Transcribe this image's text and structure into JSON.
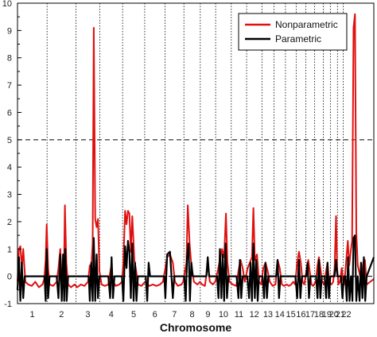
{
  "chart_data": {
    "type": "line",
    "title": "",
    "xlabel": "Chromosome",
    "ylabel": "",
    "ylim": [
      -1,
      10
    ],
    "yticks": [
      0,
      1,
      2,
      3,
      4,
      5,
      6,
      7,
      8,
      9,
      10
    ],
    "threshold": 5,
    "baseline": 0,
    "chromosomes": [
      "1",
      "2",
      "3",
      "4",
      "5",
      "6",
      "7",
      "8",
      "9",
      "10",
      "11",
      "12",
      "13",
      "14",
      "15",
      "16",
      "17",
      "18",
      "19",
      "20",
      "21",
      "22"
    ],
    "chromosome_fraction_starts": [
      0.0,
      0.083,
      0.164,
      0.231,
      0.295,
      0.357,
      0.414,
      0.467,
      0.513,
      0.556,
      0.6,
      0.643,
      0.686,
      0.72,
      0.752,
      0.782,
      0.809,
      0.834,
      0.858,
      0.878,
      0.898,
      0.914,
      0.932
    ],
    "series": [
      {
        "name": "Nonparametric",
        "color": "#e01010",
        "points": [
          [
            0.0,
            -0.2
          ],
          [
            0.004,
            1.0
          ],
          [
            0.008,
            1.1
          ],
          [
            0.012,
            0.3
          ],
          [
            0.016,
            1.0
          ],
          [
            0.022,
            -0.2
          ],
          [
            0.03,
            -0.3
          ],
          [
            0.04,
            -0.35
          ],
          [
            0.05,
            -0.2
          ],
          [
            0.06,
            -0.4
          ],
          [
            0.07,
            -0.3
          ],
          [
            0.075,
            -0.1
          ],
          [
            0.079,
            0.6
          ],
          [
            0.082,
            1.9
          ],
          [
            0.086,
            0.3
          ],
          [
            0.09,
            -0.3
          ],
          [
            0.1,
            -0.35
          ],
          [
            0.11,
            -0.2
          ],
          [
            0.115,
            0.3
          ],
          [
            0.12,
            1.0
          ],
          [
            0.124,
            -0.2
          ],
          [
            0.13,
            -0.3
          ],
          [
            0.133,
            2.6
          ],
          [
            0.137,
            0.5
          ],
          [
            0.142,
            -0.3
          ],
          [
            0.15,
            -0.4
          ],
          [
            0.16,
            -0.3
          ],
          [
            0.168,
            -0.4
          ],
          [
            0.178,
            -0.3
          ],
          [
            0.188,
            -0.35
          ],
          [
            0.198,
            -0.2
          ],
          [
            0.203,
            0.4
          ],
          [
            0.207,
            0.3
          ],
          [
            0.211,
            1.2
          ],
          [
            0.214,
            9.1
          ],
          [
            0.218,
            2.1
          ],
          [
            0.222,
            1.8
          ],
          [
            0.226,
            2.1
          ],
          [
            0.23,
            0.2
          ],
          [
            0.236,
            -0.3
          ],
          [
            0.245,
            -0.35
          ],
          [
            0.255,
            -0.3
          ],
          [
            0.262,
            0.3
          ],
          [
            0.268,
            -0.2
          ],
          [
            0.276,
            -0.35
          ],
          [
            0.286,
            -0.3
          ],
          [
            0.293,
            -0.2
          ],
          [
            0.297,
            0.5
          ],
          [
            0.302,
            2.4
          ],
          [
            0.306,
            1.9
          ],
          [
            0.31,
            2.4
          ],
          [
            0.314,
            2.3
          ],
          [
            0.318,
            0.9
          ],
          [
            0.322,
            2.2
          ],
          [
            0.328,
            0.6
          ],
          [
            0.333,
            0.2
          ],
          [
            0.338,
            -0.3
          ],
          [
            0.348,
            -0.35
          ],
          [
            0.358,
            -0.2
          ],
          [
            0.364,
            -0.3
          ],
          [
            0.37,
            -0.35
          ],
          [
            0.38,
            -0.3
          ],
          [
            0.39,
            -0.35
          ],
          [
            0.4,
            -0.3
          ],
          [
            0.408,
            -0.2
          ],
          [
            0.415,
            0.3
          ],
          [
            0.42,
            0.7
          ],
          [
            0.428,
            0.8
          ],
          [
            0.436,
            0.5
          ],
          [
            0.442,
            -0.2
          ],
          [
            0.45,
            -0.35
          ],
          [
            0.46,
            -0.3
          ],
          [
            0.465,
            -0.2
          ],
          [
            0.47,
            0.2
          ],
          [
            0.474,
            0.5
          ],
          [
            0.478,
            2.6
          ],
          [
            0.483,
            1.2
          ],
          [
            0.488,
            0.4
          ],
          [
            0.495,
            -0.2
          ],
          [
            0.505,
            -0.3
          ],
          [
            0.512,
            -0.2
          ],
          [
            0.518,
            -0.3
          ],
          [
            0.526,
            -0.35
          ],
          [
            0.534,
            0.4
          ],
          [
            0.54,
            -0.2
          ],
          [
            0.548,
            -0.3
          ],
          [
            0.555,
            -0.2
          ],
          [
            0.562,
            0.2
          ],
          [
            0.568,
            0.6
          ],
          [
            0.574,
            1.0
          ],
          [
            0.58,
            0.7
          ],
          [
            0.585,
            2.3
          ],
          [
            0.589,
            0.5
          ],
          [
            0.595,
            -0.2
          ],
          [
            0.604,
            -0.3
          ],
          [
            0.614,
            -0.35
          ],
          [
            0.62,
            0.2
          ],
          [
            0.626,
            0.6
          ],
          [
            0.632,
            0.3
          ],
          [
            0.638,
            -0.2
          ],
          [
            0.646,
            0.3
          ],
          [
            0.652,
            0.5
          ],
          [
            0.658,
            0.7
          ],
          [
            0.662,
            2.5
          ],
          [
            0.666,
            0.6
          ],
          [
            0.672,
            0.8
          ],
          [
            0.678,
            -0.2
          ],
          [
            0.684,
            -0.3
          ],
          [
            0.69,
            0.3
          ],
          [
            0.696,
            0.5
          ],
          [
            0.702,
            0.2
          ],
          [
            0.708,
            -0.2
          ],
          [
            0.716,
            -0.35
          ],
          [
            0.724,
            -0.3
          ],
          [
            0.73,
            0.6
          ],
          [
            0.736,
            0.3
          ],
          [
            0.742,
            -0.3
          ],
          [
            0.748,
            -0.35
          ],
          [
            0.755,
            -0.3
          ],
          [
            0.762,
            -0.35
          ],
          [
            0.768,
            -0.3
          ],
          [
            0.774,
            -0.2
          ],
          [
            0.779,
            -0.3
          ],
          [
            0.785,
            0.5
          ],
          [
            0.79,
            0.9
          ],
          [
            0.795,
            0.5
          ],
          [
            0.8,
            -0.2
          ],
          [
            0.805,
            -0.3
          ],
          [
            0.812,
            0.3
          ],
          [
            0.816,
            0.6
          ],
          [
            0.82,
            0.2
          ],
          [
            0.825,
            -0.3
          ],
          [
            0.83,
            -0.35
          ],
          [
            0.837,
            -0.2
          ],
          [
            0.842,
            0.4
          ],
          [
            0.846,
            0.7
          ],
          [
            0.85,
            0.3
          ],
          [
            0.855,
            -0.2
          ],
          [
            0.861,
            -0.3
          ],
          [
            0.866,
            0.2
          ],
          [
            0.87,
            0.5
          ],
          [
            0.874,
            -0.2
          ],
          [
            0.881,
            -0.3
          ],
          [
            0.886,
            -0.2
          ],
          [
            0.89,
            0.3
          ],
          [
            0.894,
            2.2
          ],
          [
            0.897,
            0.3
          ],
          [
            0.901,
            -0.3
          ],
          [
            0.905,
            -0.2
          ],
          [
            0.91,
            0.3
          ],
          [
            0.913,
            -0.1
          ],
          [
            0.917,
            -0.3
          ],
          [
            0.922,
            0.5
          ],
          [
            0.927,
            1.3
          ],
          [
            0.931,
            0.4
          ],
          [
            0.935,
            0.9
          ],
          [
            0.939,
            1.3
          ],
          [
            0.943,
            9.1
          ],
          [
            0.947,
            9.6
          ],
          [
            0.951,
            1.6
          ],
          [
            0.955,
            0.4
          ],
          [
            0.96,
            0.1
          ],
          [
            0.965,
            -0.2
          ],
          [
            0.97,
            0.5
          ],
          [
            0.975,
            0.6
          ],
          [
            0.98,
            -0.3
          ],
          [
            0.99,
            -0.2
          ],
          [
            1.0,
            -0.1
          ]
        ]
      },
      {
        "name": "Parametric",
        "color": "#000000",
        "points": [
          [
            0.0,
            -0.5
          ],
          [
            0.004,
            0.7
          ],
          [
            0.008,
            -0.9
          ],
          [
            0.012,
            0.5
          ],
          [
            0.016,
            -0.8
          ],
          [
            0.02,
            0.0
          ],
          [
            0.03,
            0.0
          ],
          [
            0.06,
            0.0
          ],
          [
            0.076,
            0.0
          ],
          [
            0.079,
            -0.9
          ],
          [
            0.082,
            1.0
          ],
          [
            0.086,
            -0.8
          ],
          [
            0.09,
            0.0
          ],
          [
            0.11,
            0.0
          ],
          [
            0.115,
            -0.8
          ],
          [
            0.12,
            0.8
          ],
          [
            0.124,
            -0.9
          ],
          [
            0.128,
            0.8
          ],
          [
            0.131,
            -0.9
          ],
          [
            0.134,
            1.0
          ],
          [
            0.138,
            -0.9
          ],
          [
            0.142,
            0.0
          ],
          [
            0.18,
            0.0
          ],
          [
            0.2,
            0.0
          ],
          [
            0.203,
            -0.9
          ],
          [
            0.207,
            0.5
          ],
          [
            0.211,
            -0.9
          ],
          [
            0.214,
            1.4
          ],
          [
            0.218,
            -0.9
          ],
          [
            0.222,
            0.8
          ],
          [
            0.226,
            -0.8
          ],
          [
            0.23,
            0.0
          ],
          [
            0.255,
            0.0
          ],
          [
            0.26,
            -0.8
          ],
          [
            0.264,
            0.7
          ],
          [
            0.268,
            -0.8
          ],
          [
            0.272,
            0.0
          ],
          [
            0.293,
            0.0
          ],
          [
            0.297,
            -0.9
          ],
          [
            0.302,
            1.1
          ],
          [
            0.306,
            0.3
          ],
          [
            0.31,
            1.3
          ],
          [
            0.314,
            0.9
          ],
          [
            0.318,
            -0.8
          ],
          [
            0.322,
            1.2
          ],
          [
            0.326,
            -0.9
          ],
          [
            0.33,
            0.5
          ],
          [
            0.334,
            -0.9
          ],
          [
            0.338,
            0.0
          ],
          [
            0.36,
            0.0
          ],
          [
            0.364,
            -0.9
          ],
          [
            0.368,
            0.5
          ],
          [
            0.372,
            0.0
          ],
          [
            0.412,
            0.0
          ],
          [
            0.415,
            -0.8
          ],
          [
            0.42,
            0.8
          ],
          [
            0.428,
            0.9
          ],
          [
            0.436,
            -0.8
          ],
          [
            0.44,
            0.0
          ],
          [
            0.468,
            0.0
          ],
          [
            0.472,
            -0.9
          ],
          [
            0.476,
            0.7
          ],
          [
            0.48,
            1.2
          ],
          [
            0.484,
            -0.9
          ],
          [
            0.488,
            0.5
          ],
          [
            0.492,
            0.0
          ],
          [
            0.53,
            0.0
          ],
          [
            0.534,
            0.7
          ],
          [
            0.538,
            0.0
          ],
          [
            0.56,
            0.0
          ],
          [
            0.564,
            -0.8
          ],
          [
            0.568,
            1.0
          ],
          [
            0.572,
            -0.8
          ],
          [
            0.576,
            0.8
          ],
          [
            0.58,
            -0.9
          ],
          [
            0.584,
            1.2
          ],
          [
            0.588,
            -0.8
          ],
          [
            0.592,
            0.0
          ],
          [
            0.615,
            0.0
          ],
          [
            0.62,
            -0.8
          ],
          [
            0.624,
            0.6
          ],
          [
            0.628,
            -0.8
          ],
          [
            0.632,
            0.0
          ],
          [
            0.645,
            0.0
          ],
          [
            0.65,
            -0.8
          ],
          [
            0.654,
            0.5
          ],
          [
            0.658,
            -0.9
          ],
          [
            0.662,
            1.2
          ],
          [
            0.666,
            -0.8
          ],
          [
            0.67,
            0.6
          ],
          [
            0.674,
            -0.9
          ],
          [
            0.678,
            0.0
          ],
          [
            0.688,
            0.0
          ],
          [
            0.692,
            -0.8
          ],
          [
            0.696,
            0.5
          ],
          [
            0.7,
            -0.8
          ],
          [
            0.704,
            0.0
          ],
          [
            0.726,
            0.0
          ],
          [
            0.73,
            0.6
          ],
          [
            0.734,
            -0.8
          ],
          [
            0.738,
            0.0
          ],
          [
            0.78,
            0.0
          ],
          [
            0.785,
            -0.8
          ],
          [
            0.79,
            0.6
          ],
          [
            0.794,
            -0.8
          ],
          [
            0.798,
            0.0
          ],
          [
            0.81,
            0.0
          ],
          [
            0.814,
            0.5
          ],
          [
            0.818,
            -0.8
          ],
          [
            0.822,
            0.0
          ],
          [
            0.838,
            0.0
          ],
          [
            0.842,
            -0.8
          ],
          [
            0.846,
            0.6
          ],
          [
            0.85,
            -0.8
          ],
          [
            0.854,
            0.0
          ],
          [
            0.862,
            0.0
          ],
          [
            0.866,
            -0.8
          ],
          [
            0.87,
            0.5
          ],
          [
            0.874,
            -0.8
          ],
          [
            0.878,
            0.0
          ],
          [
            0.89,
            0.0
          ],
          [
            0.894,
            0.6
          ],
          [
            0.898,
            0.0
          ],
          [
            0.908,
            0.0
          ],
          [
            0.912,
            -0.8
          ],
          [
            0.916,
            0.0
          ],
          [
            0.92,
            0.0
          ],
          [
            0.924,
            -0.9
          ],
          [
            0.928,
            0.7
          ],
          [
            0.932,
            -0.9
          ],
          [
            0.936,
            0.0
          ],
          [
            0.94,
            -0.9
          ],
          [
            0.943,
            1.4
          ],
          [
            0.947,
            1.5
          ],
          [
            0.951,
            -0.9
          ],
          [
            0.955,
            0.0
          ],
          [
            0.96,
            -0.9
          ],
          [
            0.964,
            0.5
          ],
          [
            0.968,
            -0.8
          ],
          [
            0.972,
            0.7
          ],
          [
            0.976,
            -0.9
          ],
          [
            0.98,
            0.0
          ],
          [
            1.0,
            0.7
          ]
        ]
      }
    ],
    "legend": {
      "position": "top-right"
    }
  }
}
